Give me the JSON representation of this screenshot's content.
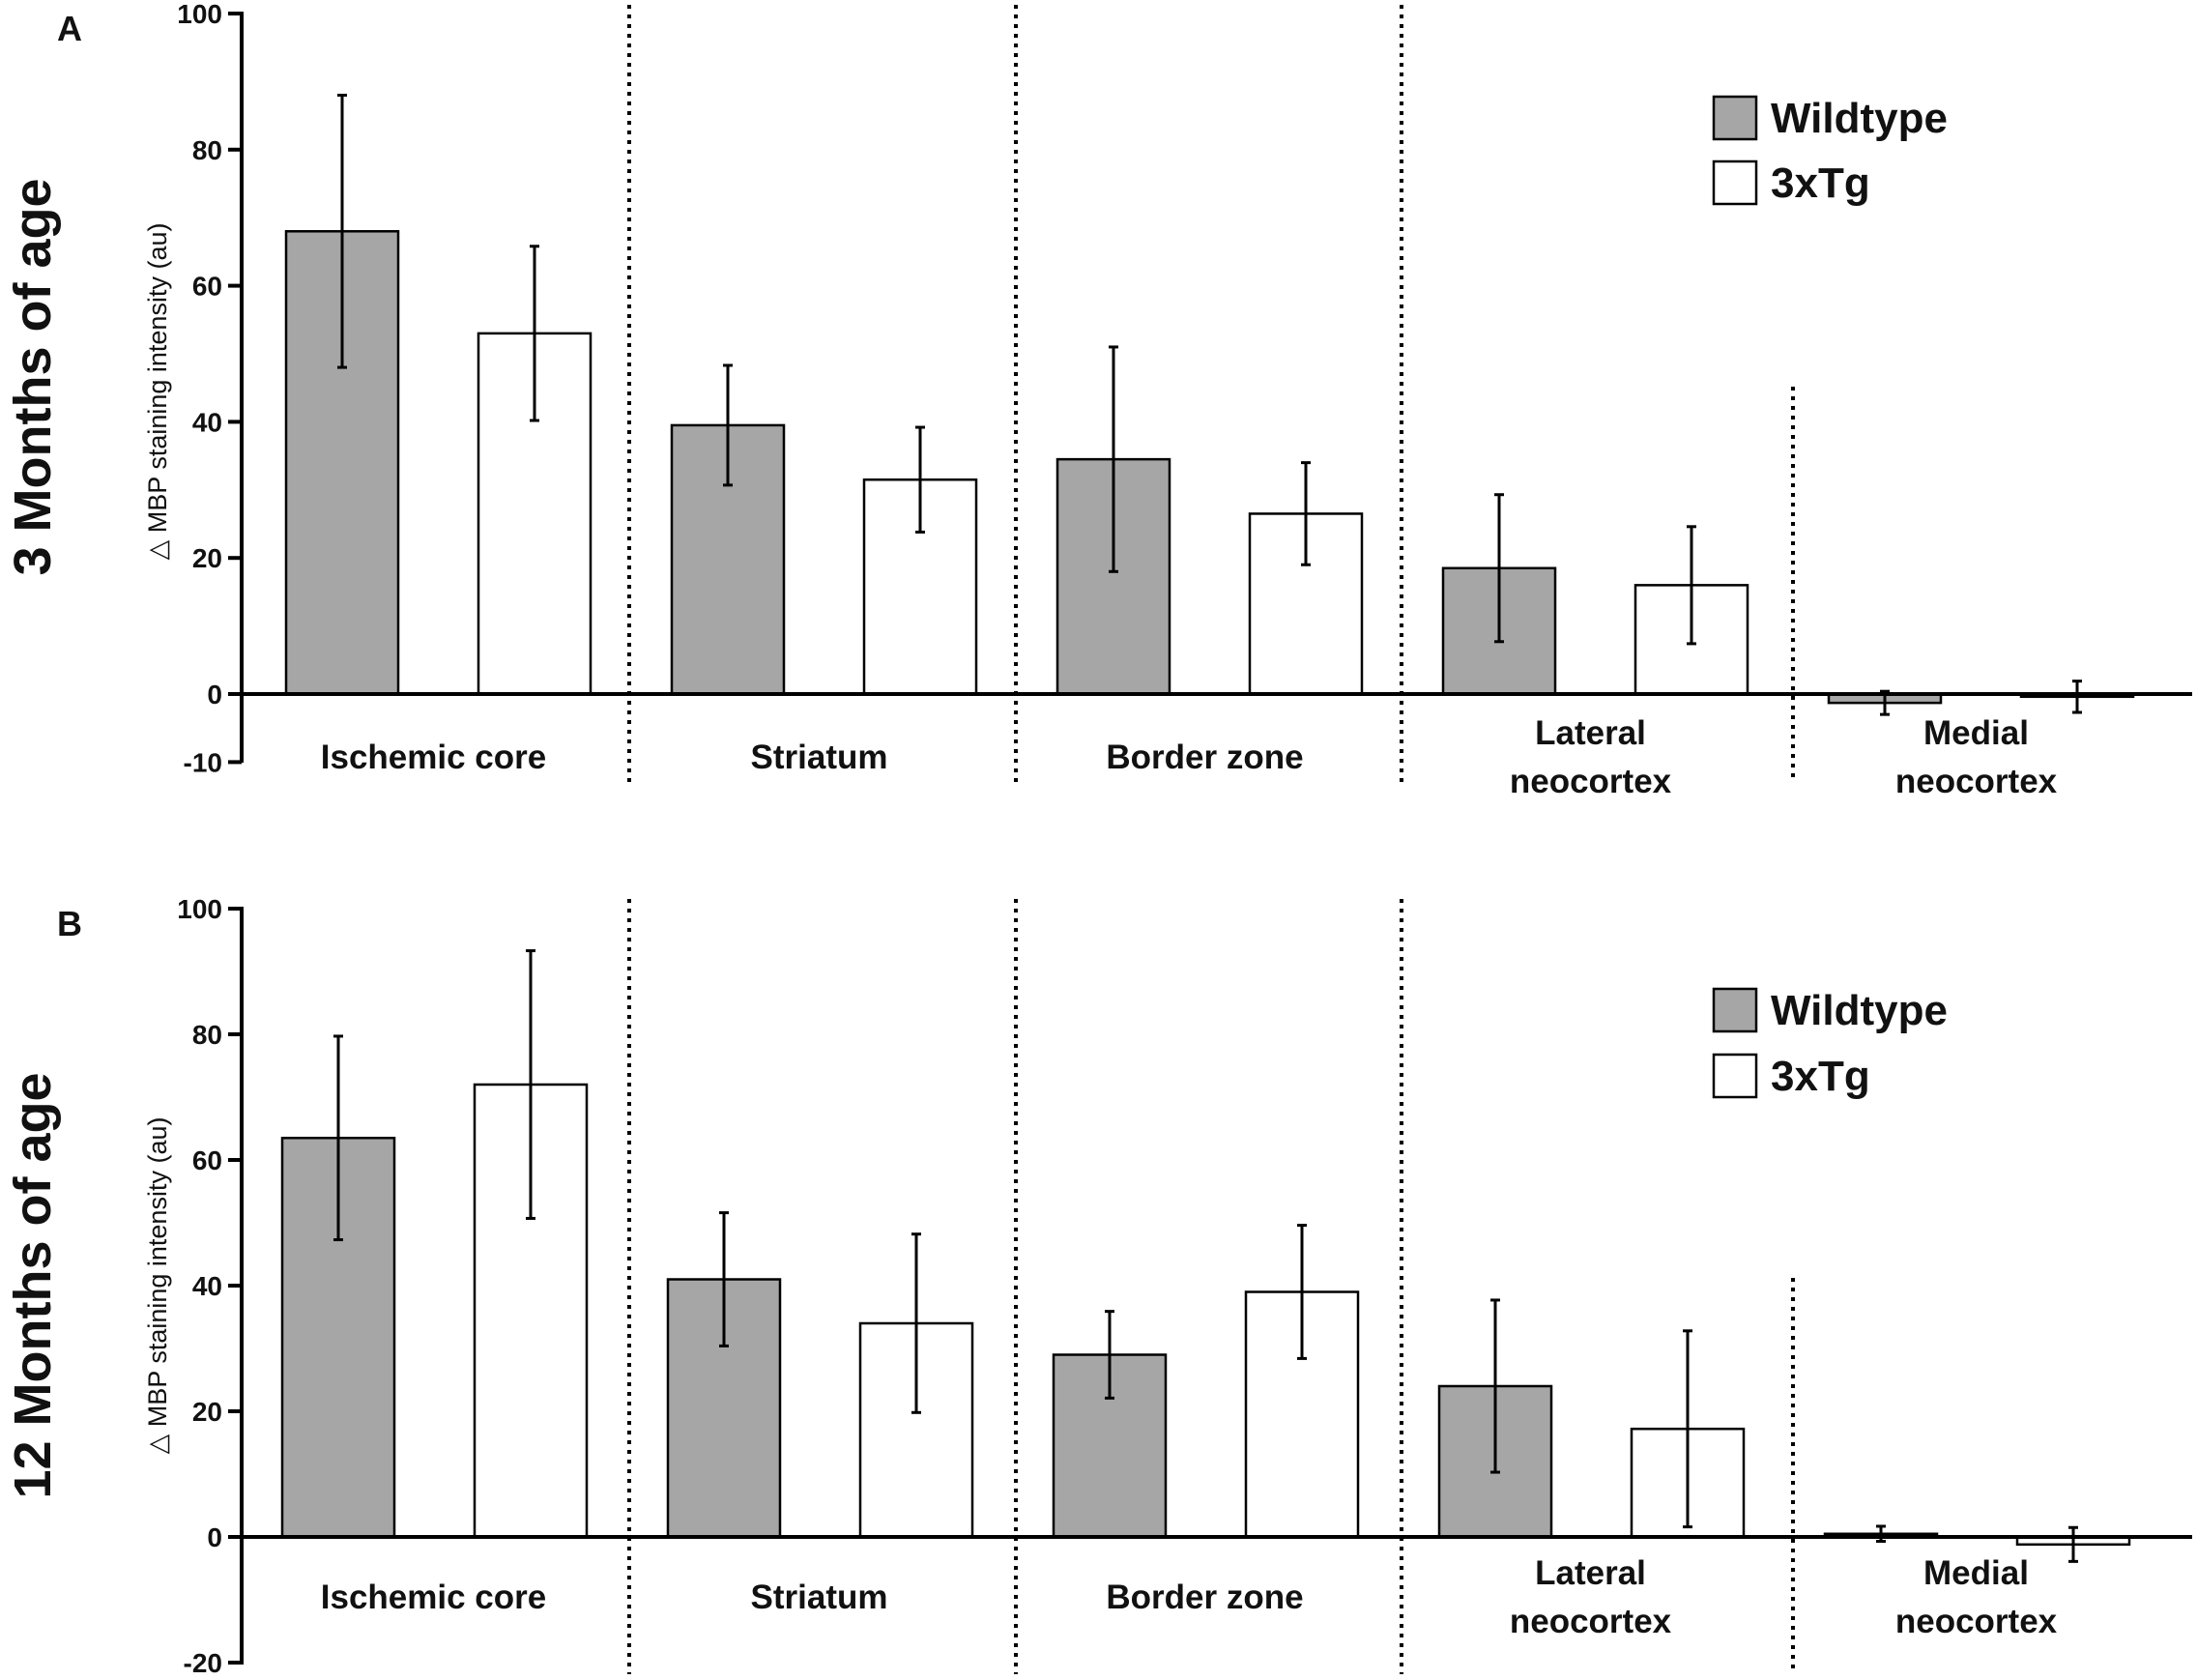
{
  "colors": {
    "wildtype": "#a6a6a6",
    "tg": "#ffffff",
    "stroke": "#000000"
  },
  "chart_data": [
    {
      "type": "bar",
      "panel": "A",
      "title": "3 Months of age",
      "ylabel": "△ MBP staining intensity (au)",
      "ylim": [
        -10,
        100
      ],
      "yticks": [
        -10,
        0,
        20,
        40,
        60,
        80,
        100
      ],
      "categories": [
        [
          "Ischemic core"
        ],
        [
          "Striatum"
        ],
        [
          "Border zone"
        ],
        [
          "Lateral",
          "neocortex"
        ],
        [
          "Medial",
          "neocortex"
        ]
      ],
      "series": [
        {
          "name": "Wildtype",
          "values": [
            68,
            39.5,
            34.5,
            18.5,
            -1.3
          ],
          "errors": [
            20,
            8.8,
            16.5,
            10.8,
            1.7
          ]
        },
        {
          "name": "3xTg",
          "values": [
            53,
            31.5,
            26.5,
            16,
            -0.4
          ],
          "errors": [
            12.8,
            7.7,
            7.5,
            8.6,
            2.3
          ]
        }
      ]
    },
    {
      "type": "bar",
      "panel": "B",
      "title": "12 Months of age",
      "ylabel": "△ MBP staining intensity (au)",
      "ylim": [
        -20,
        100
      ],
      "yticks": [
        -20,
        0,
        20,
        40,
        60,
        80,
        100
      ],
      "categories": [
        [
          "Ischemic core"
        ],
        [
          "Striatum"
        ],
        [
          "Border zone"
        ],
        [
          "Lateral",
          "neocortex"
        ],
        [
          "Medial",
          "neocortex"
        ]
      ],
      "series": [
        {
          "name": "Wildtype",
          "values": [
            63.5,
            41,
            29,
            24,
            0.5
          ],
          "errors": [
            16.2,
            10.6,
            6.9,
            13.7,
            1.2
          ]
        },
        {
          "name": "3xTg",
          "values": [
            72,
            34,
            39,
            17.2,
            -1.2
          ],
          "errors": [
            21.3,
            14.2,
            10.6,
            15.6,
            2.7
          ]
        }
      ]
    }
  ]
}
